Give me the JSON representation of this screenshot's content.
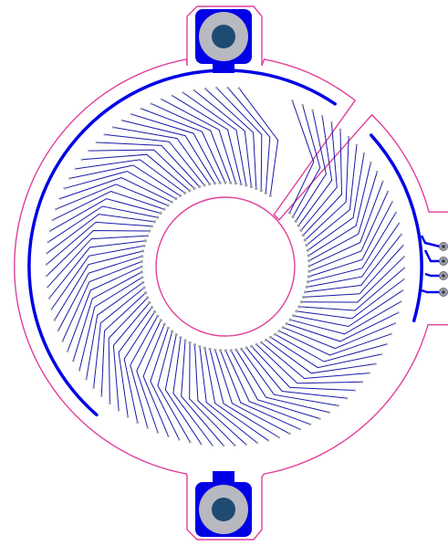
{
  "colors": {
    "background": "#ffffff",
    "outline": "#e0409a",
    "copper": "#0000e6",
    "trace": "#1a1aa8",
    "pad_fill": "#b8b8c0",
    "hole_fill": "#1f4b73",
    "via_fill": "#9ea0a8",
    "via_hole": "#3a3a4a"
  },
  "board": {
    "mounting_holes": 2,
    "connector_pins": 4,
    "coil_traces": 96
  }
}
